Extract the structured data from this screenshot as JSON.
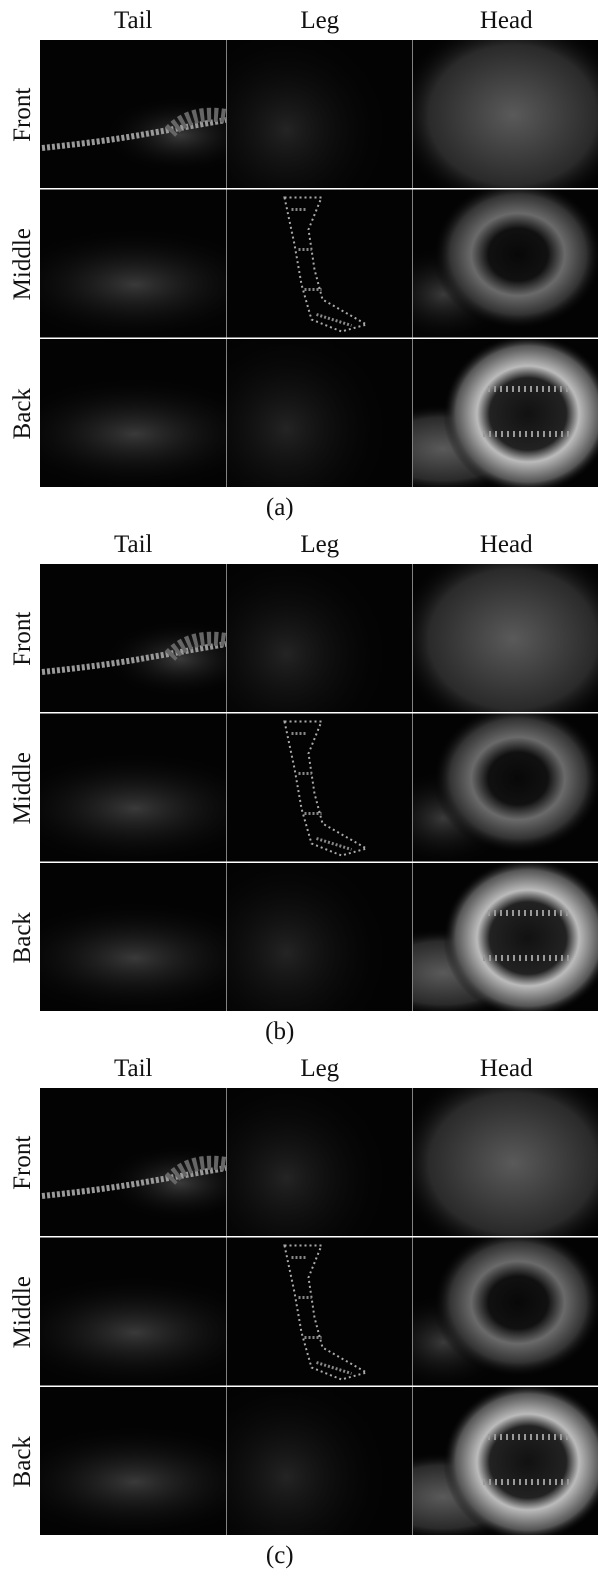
{
  "figure": {
    "panels": [
      {
        "label": "(a)",
        "columns": [
          "Tail",
          "Leg",
          "Head"
        ],
        "rows": [
          "Front",
          "Middle",
          "Back"
        ]
      },
      {
        "label": "(b)",
        "columns": [
          "Tail",
          "Leg",
          "Head"
        ],
        "rows": [
          "Front",
          "Middle",
          "Back"
        ]
      },
      {
        "label": "(c)",
        "columns": [
          "Tail",
          "Leg",
          "Head"
        ],
        "rows": [
          "Front",
          "Middle",
          "Back"
        ]
      }
    ]
  }
}
